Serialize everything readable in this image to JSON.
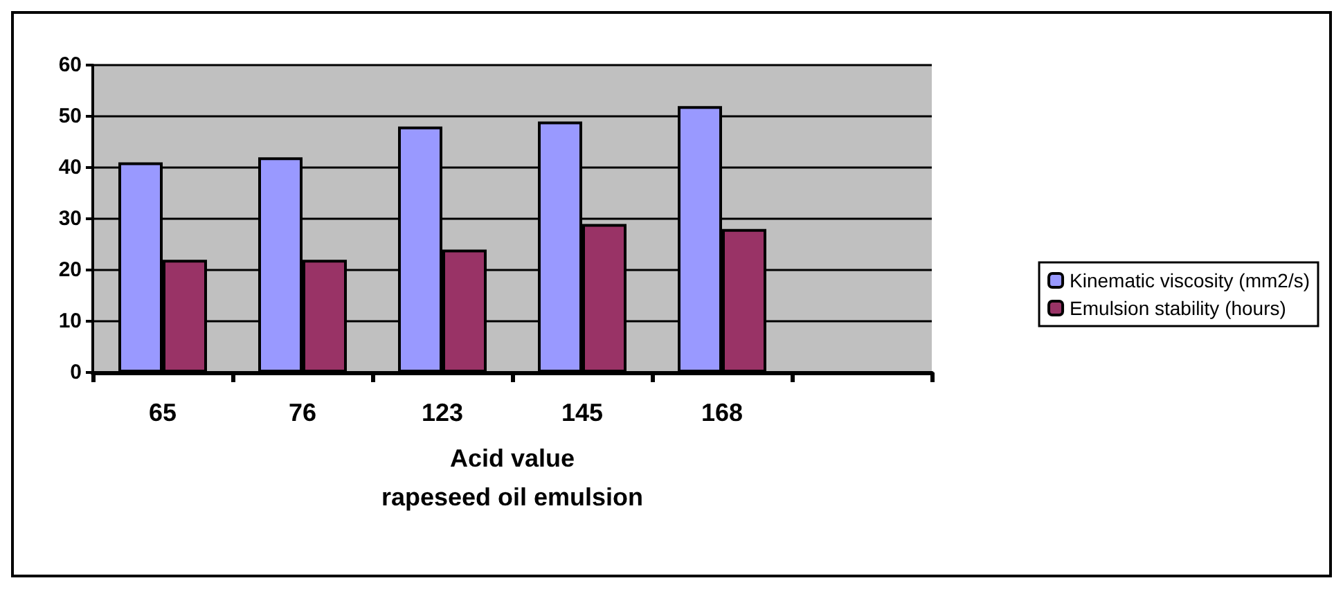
{
  "chart_data": {
    "type": "bar",
    "xlabel": "Acid value\nrapeseed oil emulsion",
    "categories": [
      "65",
      "76",
      "123",
      "145",
      "168",
      null
    ],
    "series": [
      {
        "name": "Kinematic viscosity (mm2/s)",
        "color": "#9999ff",
        "values": [
          41,
          42,
          48,
          49,
          52,
          null
        ]
      },
      {
        "name": "Emulsion stability (hours)",
        "color": "#993366",
        "values": [
          22,
          22,
          24,
          29,
          28,
          null
        ]
      }
    ],
    "ylim": [
      0,
      60
    ],
    "yticks": [
      0,
      10,
      20,
      30,
      40,
      50,
      60
    ],
    "grid": "y",
    "legend": "right"
  }
}
